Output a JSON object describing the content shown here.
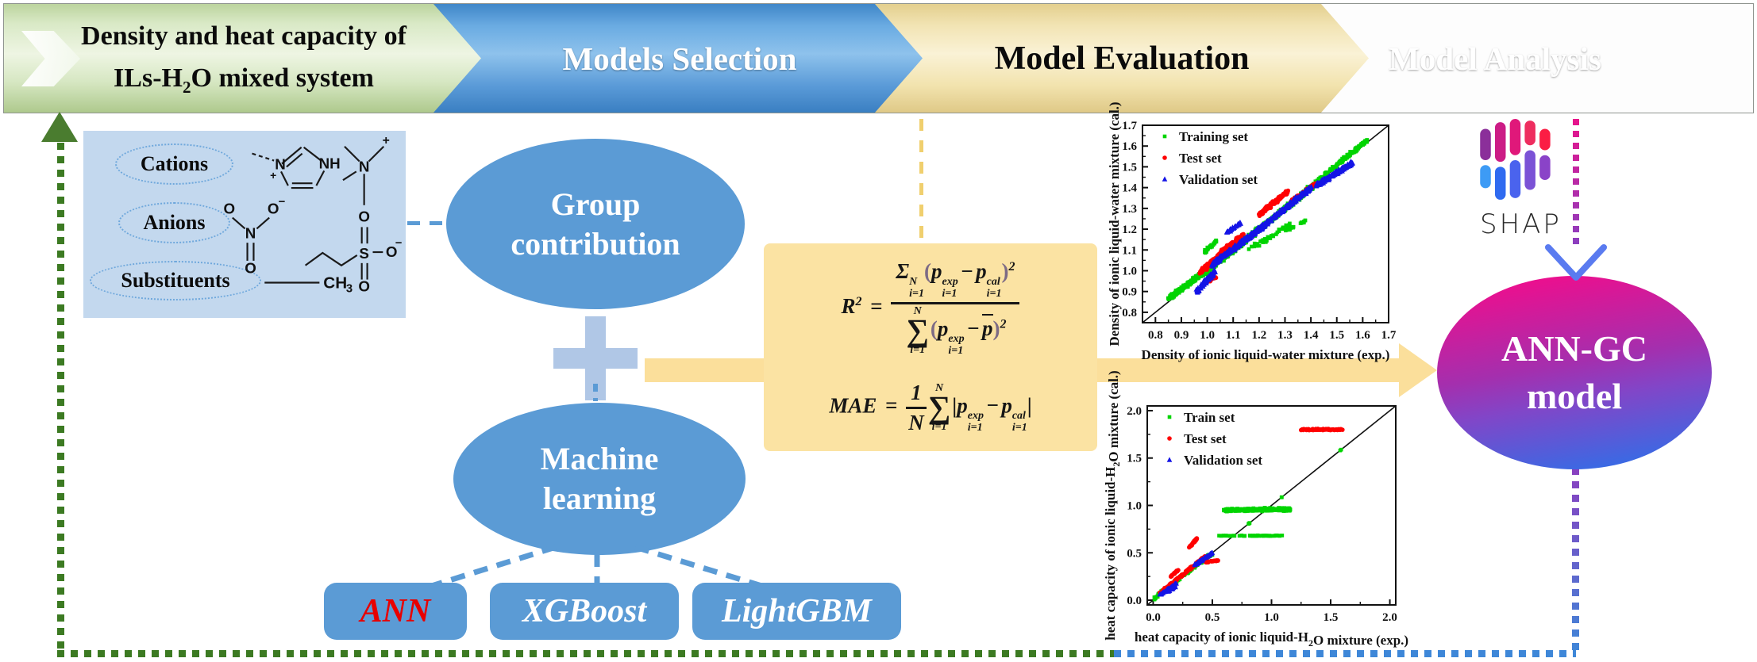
{
  "banner": {
    "steps": [
      {
        "line1": "Density and heat capacity of",
        "line2_pre": "ILs-H",
        "line2_sub": "2",
        "line2_post": "O mixed system"
      },
      {
        "label": "Models Selection"
      },
      {
        "label": "Model Evaluation"
      },
      {
        "label": "Model Analysis"
      }
    ]
  },
  "chem_box": {
    "groups": [
      {
        "label": "Cations"
      },
      {
        "label": "Anions"
      },
      {
        "label": "Substituents"
      }
    ],
    "atoms": {
      "n1": "N",
      "plus1": "+",
      "nh": "NH",
      "n2": "N",
      "plus2": "+",
      "o1": "O",
      "o2": "O",
      "minus1": "−",
      "n3": "N",
      "o3": "O",
      "o4": "O",
      "s": "S",
      "o5": "O",
      "minus2": "−",
      "o6": "O",
      "ch": "CH",
      "chsub": "3"
    }
  },
  "nodes": {
    "group_contribution": {
      "line1": "Group",
      "line2": "contribution"
    },
    "machine_learning": {
      "line1": "Machine",
      "line2": "learning"
    },
    "ann_gc": {
      "line1": "ANN-GC",
      "line2": "model"
    }
  },
  "model_boxes": [
    {
      "label": "ANN"
    },
    {
      "label": "XGBoost"
    },
    {
      "label": "LightGBM"
    }
  ],
  "formulas": {
    "r2_text": "R2 = [Sigma_(i=1)^N (p_(i=1)^exp - p_(i=1)^cal)^2] / [Sum_(i=1)^N (p_(i=1)^exp - pbar)^2]",
    "mae_text": "MAE = (1/N) Sum_(i=1)^N |p_(i=1)^exp - p_(i=1)^cal|",
    "r2_html": "<span>R</span><sup class='lsup'>2</sup><span class='eq'> = </span><span class='frac'><span class='num'><span>&Sigma;</span><span class='ss'><span>N</span><span>i=1</span></span><span class='par'>(</span><span>p</span><span class='ss'><span>exp</span><span>i=1</span></span><span class='op'>&minus;</span><span>p</span><span class='ss'><span>cal</span><span>i=1</span></span><span class='par'>)</span><sup class='pw'>2</sup></span><span class='den'><span class='bigsum'><span class='lim'>N</span><span class='sym'>&sum;</span><span class='lim'>i=1</span></span><span class='par'>(</span><span>p</span><span class='ss'><span>exp</span><span>i=1</span></span><span class='op'>&minus;</span><span class='pbar'>p</span><span class='par'>)</span><sup class='pw'>2</sup></span></span>",
    "mae_html": "<span>MAE</span><span class='eq'> = </span><span class='frac'><span class='num'>1</span><span class='den'>N</span></span><span class='bigsum'><span class='lim'>N</span><span class='sym'>&sum;</span><span class='lim'>i=1</span></span><span class='abs'>|</span><span>p</span><span class='ss'><span>exp</span><span>i=1</span></span><span class='op'>&minus;</span><span>p</span><span class='ss'><span>cal</span><span>i=1</span></span><span class='abs'>|</span>"
  },
  "shap": {
    "label": "SHAP"
  },
  "colors": {
    "node_blue": "#5b9bd5",
    "plus_blue": "#b0c7e6",
    "flow_yellow": "#fbdf9b",
    "formula_bg": "#fbe3a3",
    "green_dots": "#3c7a22",
    "blue_dots": "#3e87d8",
    "magenta": "#ee0b8e",
    "purple": "#8a3fc0",
    "ann_red": "#e80000",
    "train_green": "#00d400",
    "test_red": "#ff0000",
    "validation_blue": "#1414e6"
  },
  "chart_data": [
    {
      "type": "scatter",
      "xlabel": "Density of ionic liquid-water mixture (exp.)",
      "ylabel": "Density of ionic liquid-water mixture (cal.)",
      "xlabel_parts": [
        {
          "t": "Density of ionic liquid-water mixture (exp.)"
        }
      ],
      "ylabel_parts": [
        {
          "t": "Density of ionic liquid-water mixture (cal.)"
        }
      ],
      "xlim": [
        0.75,
        1.7
      ],
      "ylim": [
        0.75,
        1.7
      ],
      "xticks": [
        {
          "v": 0.8,
          "t": "0.8"
        },
        {
          "v": 0.9,
          "t": "0.9"
        },
        {
          "v": 1.0,
          "t": "1.0"
        },
        {
          "v": 1.1,
          "t": "1.1"
        },
        {
          "v": 1.2,
          "t": "1.2"
        },
        {
          "v": 1.3,
          "t": "1.3"
        },
        {
          "v": 1.4,
          "t": "1.4"
        },
        {
          "v": 1.5,
          "t": "1.5"
        },
        {
          "v": 1.6,
          "t": "1.6"
        },
        {
          "v": 1.7,
          "t": "1.7"
        }
      ],
      "yticks": [
        {
          "v": 0.8,
          "t": "0.8"
        },
        {
          "v": 0.9,
          "t": "0.9"
        },
        {
          "v": 1.0,
          "t": "1.0"
        },
        {
          "v": 1.1,
          "t": "1.1"
        },
        {
          "v": 1.2,
          "t": "1.2"
        },
        {
          "v": 1.3,
          "t": "1.3"
        },
        {
          "v": 1.4,
          "t": "1.4"
        },
        {
          "v": 1.5,
          "t": "1.5"
        },
        {
          "v": 1.6,
          "t": "1.6"
        },
        {
          "v": 1.7,
          "t": "1.7"
        }
      ],
      "diagonal": true,
      "legend_position": "top-left",
      "series": [
        {
          "name": "Training set",
          "color": "#00d400",
          "marker": "square",
          "clusters": [
            {
              "x0": 0.85,
              "x1": 0.98,
              "y0": 0.865,
              "y1": 0.985,
              "jx": 0.004,
              "jy": 0.012,
              "n": 260
            },
            {
              "x0": 0.98,
              "x1": 1.2,
              "y0": 0.98,
              "y1": 1.2,
              "jx": 0.004,
              "jy": 0.016,
              "n": 420
            },
            {
              "x0": 1.2,
              "x1": 1.47,
              "y0": 1.2,
              "y1": 1.47,
              "jx": 0.004,
              "jy": 0.014,
              "n": 300
            },
            {
              "x0": 1.45,
              "x1": 1.62,
              "y0": 1.46,
              "y1": 1.63,
              "jx": 0.003,
              "jy": 0.01,
              "n": 140
            },
            {
              "x0": 0.99,
              "x1": 1.05,
              "y0": 1.09,
              "y1": 1.16,
              "jx": 0.003,
              "jy": 0.01,
              "n": 30
            },
            {
              "x0": 1.16,
              "x1": 1.32,
              "y0": 1.1,
              "y1": 1.22,
              "jx": 0.004,
              "jy": 0.012,
              "n": 45
            },
            {
              "x0": 1.3,
              "x1": 1.38,
              "y0": 1.19,
              "y1": 1.24,
              "jx": 0.003,
              "jy": 0.006,
              "n": 20
            }
          ]
        },
        {
          "name": "Test set",
          "color": "#ff0000",
          "marker": "circle",
          "clusters": [
            {
              "x0": 0.97,
              "x1": 1.1,
              "y0": 0.99,
              "y1": 1.13,
              "jx": 0.004,
              "jy": 0.012,
              "n": 160
            },
            {
              "x0": 1.05,
              "x1": 1.14,
              "y0": 1.09,
              "y1": 1.17,
              "jx": 0.004,
              "jy": 0.01,
              "n": 90
            },
            {
              "x0": 1.2,
              "x1": 1.31,
              "y0": 1.27,
              "y1": 1.38,
              "jx": 0.003,
              "jy": 0.012,
              "n": 120
            },
            {
              "x0": 1.32,
              "x1": 1.42,
              "y0": 1.33,
              "y1": 1.42,
              "jx": 0.003,
              "jy": 0.008,
              "n": 70
            },
            {
              "x0": 1.0,
              "x1": 1.04,
              "y0": 0.95,
              "y1": 0.97,
              "jx": 0.003,
              "jy": 0.006,
              "n": 10
            }
          ]
        },
        {
          "name": "Validation set",
          "color": "#1414e6",
          "marker": "triangle",
          "clusters": [
            {
              "x0": 0.96,
              "x1": 1.03,
              "y0": 0.9,
              "y1": 1.0,
              "jx": 0.004,
              "jy": 0.014,
              "n": 90
            },
            {
              "x0": 1.02,
              "x1": 1.22,
              "y0": 1.03,
              "y1": 1.22,
              "jx": 0.004,
              "jy": 0.014,
              "n": 260
            },
            {
              "x0": 1.07,
              "x1": 1.13,
              "y0": 1.18,
              "y1": 1.23,
              "jx": 0.003,
              "jy": 0.008,
              "n": 40
            },
            {
              "x0": 1.22,
              "x1": 1.4,
              "y0": 1.22,
              "y1": 1.4,
              "jx": 0.004,
              "jy": 0.012,
              "n": 200
            },
            {
              "x0": 1.42,
              "x1": 1.56,
              "y0": 1.41,
              "y1": 1.52,
              "jx": 0.004,
              "jy": 0.012,
              "n": 180
            }
          ]
        }
      ]
    },
    {
      "type": "scatter",
      "xlabel": "heat capacity of ionic liquid-H2O mixture (exp.)",
      "ylabel": "heat capacity of ionic liquid-H2O mixture (cal.)",
      "xlabel_parts": [
        {
          "t": "heat capacity of ionic liquid-H"
        },
        {
          "t": "2",
          "sub": true
        },
        {
          "t": "O mixture (exp.)"
        }
      ],
      "ylabel_parts": [
        {
          "t": "heat capacity of ionic liquid-H"
        },
        {
          "t": "2",
          "sub": true
        },
        {
          "t": "O mixture (cal.)"
        }
      ],
      "xlim": [
        -0.05,
        2.05
      ],
      "ylim": [
        -0.05,
        2.05
      ],
      "xticks": [
        {
          "v": 0.0,
          "t": "0.0"
        },
        {
          "v": 0.5,
          "t": "0.5"
        },
        {
          "v": 1.0,
          "t": "1.0"
        },
        {
          "v": 1.5,
          "t": "1.5"
        },
        {
          "v": 2.0,
          "t": "2.0"
        }
      ],
      "yticks": [
        {
          "v": 0.0,
          "t": "0.0"
        },
        {
          "v": 0.5,
          "t": "0.5"
        },
        {
          "v": 1.0,
          "t": "1.0"
        },
        {
          "v": 1.5,
          "t": "1.5"
        },
        {
          "v": 2.0,
          "t": "2.0"
        }
      ],
      "diagonal": true,
      "legend_position": "top-left",
      "series": [
        {
          "name": "Train set",
          "color": "#00d400",
          "marker": "square",
          "clusters": [
            {
              "x0": 0.01,
              "x1": 0.5,
              "y0": 0.02,
              "y1": 0.5,
              "jx": 0.004,
              "jy": 0.02,
              "n": 150
            },
            {
              "x0": 0.6,
              "x1": 1.16,
              "y0": 0.95,
              "y1": 0.96,
              "jx": 0.01,
              "jy": 0.018,
              "n": 420
            },
            {
              "x0": 0.55,
              "x1": 1.1,
              "y0": 0.68,
              "y1": 0.68,
              "jx": 0.01,
              "jy": 0.004,
              "n": 70
            },
            {
              "x0": 0.8,
              "x1": 0.84,
              "y0": 0.8,
              "y1": 0.84,
              "jx": 0,
              "jy": 0,
              "n": 3
            },
            {
              "x0": 1.07,
              "x1": 1.09,
              "y0": 1.07,
              "y1": 1.09,
              "jx": 0,
              "jy": 0,
              "n": 2
            },
            {
              "x0": 1.57,
              "x1": 1.59,
              "y0": 1.57,
              "y1": 1.59,
              "jx": 0,
              "jy": 0,
              "n": 2
            }
          ]
        },
        {
          "name": "Test set",
          "color": "#ff0000",
          "marker": "circle",
          "clusters": [
            {
              "x0": 0.05,
              "x1": 0.45,
              "y0": 0.07,
              "y1": 0.47,
              "jx": 0.004,
              "jy": 0.015,
              "n": 140
            },
            {
              "x0": 0.3,
              "x1": 0.37,
              "y0": 0.55,
              "y1": 0.65,
              "jx": 0.003,
              "jy": 0.01,
              "n": 40
            },
            {
              "x0": 1.25,
              "x1": 1.6,
              "y0": 1.8,
              "y1": 1.8,
              "jx": 0.006,
              "jy": 0.008,
              "n": 90
            },
            {
              "x0": 0.44,
              "x1": 0.55,
              "y0": 0.4,
              "y1": 0.42,
              "jx": 0.004,
              "jy": 0.006,
              "n": 30
            },
            {
              "x0": 0.15,
              "x1": 0.22,
              "y0": 0.25,
              "y1": 0.33,
              "jx": 0.003,
              "jy": 0.008,
              "n": 25
            }
          ]
        },
        {
          "name": "Validation set",
          "color": "#1414e6",
          "marker": "triangle",
          "clusters": [
            {
              "x0": 0.05,
              "x1": 0.2,
              "y0": 0.05,
              "y1": 0.18,
              "jx": 0.004,
              "jy": 0.01,
              "n": 40
            },
            {
              "x0": 0.35,
              "x1": 0.5,
              "y0": 0.37,
              "y1": 0.5,
              "jx": 0.004,
              "jy": 0.01,
              "n": 60
            },
            {
              "x0": 0.12,
              "x1": 0.2,
              "y0": 0.09,
              "y1": 0.15,
              "jx": 0.003,
              "jy": 0.008,
              "n": 20
            }
          ]
        }
      ]
    }
  ]
}
